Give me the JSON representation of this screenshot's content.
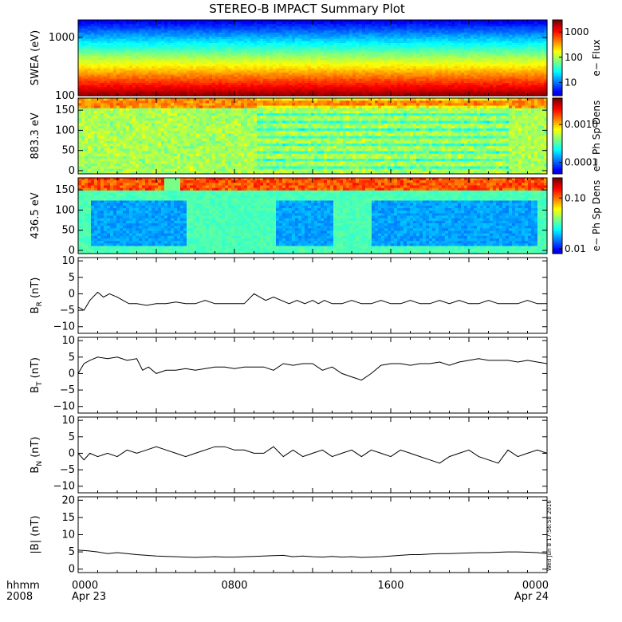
{
  "title": "STEREO-B IMPACT Summary Plot",
  "stamp": "Wed Jun  8 17:56:58 2016",
  "time_axis": {
    "row1_label": "hhmm",
    "row2_label": "2008",
    "range_hours": [
      0,
      24
    ],
    "ticks": [
      {
        "hour": 0,
        "label": "0000",
        "sub": "Apr 23"
      },
      {
        "hour": 8,
        "label": "0800",
        "sub": ""
      },
      {
        "hour": 16,
        "label": "1600",
        "sub": ""
      },
      {
        "hour": 24,
        "label": "0000",
        "sub": "Apr 24"
      }
    ]
  },
  "chart_data": [
    {
      "type": "heatmap",
      "ylabel": "SWEA (eV)",
      "yscale": "log",
      "ylim": [
        100,
        2000
      ],
      "yticks": [
        {
          "v": 100,
          "label": "100"
        },
        {
          "v": 1000,
          "label": "1000"
        }
      ],
      "colorbar": {
        "label": "e− Flux",
        "scale": "log",
        "range": [
          3,
          3000
        ],
        "ticks": [
          {
            "v": 10,
            "label": "10"
          },
          {
            "v": 100,
            "label": "100"
          },
          {
            "v": 1000,
            "label": "1000"
          }
        ]
      }
    },
    {
      "type": "heatmap",
      "ylabel": "883.3 eV",
      "ylim": [
        -8,
        180
      ],
      "yticks": [
        {
          "v": 0,
          "label": "0"
        },
        {
          "v": 50,
          "label": "50"
        },
        {
          "v": 100,
          "label": "100"
        },
        {
          "v": 150,
          "label": "150"
        }
      ],
      "colorbar": {
        "label": "e− Ph Sp Dens",
        "scale": "log",
        "range": [
          5e-05,
          0.005
        ],
        "ticks": [
          {
            "v": 0.0001,
            "label": "0.0001"
          },
          {
            "v": 0.001,
            "label": "0.0010"
          }
        ]
      }
    },
    {
      "type": "heatmap",
      "ylabel": "436.5 eV",
      "ylim": [
        -8,
        180
      ],
      "yticks": [
        {
          "v": 0,
          "label": "0"
        },
        {
          "v": 50,
          "label": "50"
        },
        {
          "v": 100,
          "label": "100"
        },
        {
          "v": 150,
          "label": "150"
        }
      ],
      "colorbar": {
        "label": "e− Ph Sp Dens",
        "scale": "log",
        "range": [
          0.008,
          0.25
        ],
        "ticks": [
          {
            "v": 0.01,
            "label": "0.01"
          },
          {
            "v": 0.1,
            "label": "0.10"
          }
        ]
      }
    },
    {
      "type": "line",
      "ylabel": "B",
      "ysub": "R",
      "yunit": "(nT)",
      "ylim": [
        -12,
        11
      ],
      "yticks": [
        {
          "v": -10,
          "label": "−10"
        },
        {
          "v": -5,
          "label": "−5"
        },
        {
          "v": 0,
          "label": "0"
        },
        {
          "v": 5,
          "label": "5"
        },
        {
          "v": 10,
          "label": "10"
        }
      ],
      "x": [
        0,
        0.3,
        0.6,
        1,
        1.3,
        1.6,
        2,
        2.3,
        2.6,
        3,
        3.5,
        4,
        4.5,
        5,
        5.5,
        6,
        6.5,
        7,
        7.5,
        8,
        8.5,
        9,
        9.3,
        9.6,
        10,
        10.4,
        10.8,
        11.2,
        11.6,
        12,
        12.3,
        12.6,
        13,
        13.5,
        14,
        14.5,
        15,
        15.5,
        16,
        16.5,
        17,
        17.5,
        18,
        18.5,
        19,
        19.5,
        20,
        20.5,
        21,
        21.5,
        22,
        22.5,
        23,
        23.5,
        24
      ],
      "y": [
        -4,
        -5,
        -2,
        0.5,
        -1,
        0,
        -1,
        -2,
        -3,
        -3,
        -3.5,
        -3,
        -3,
        -2.5,
        -3,
        -3,
        -2,
        -3,
        -3,
        -3,
        -3,
        0,
        -1,
        -2,
        -1,
        -2,
        -3,
        -2,
        -3,
        -2,
        -3,
        -2,
        -3,
        -3,
        -2,
        -3,
        -3,
        -2,
        -3,
        -3,
        -2,
        -3,
        -3,
        -2,
        -3,
        -2,
        -3,
        -3,
        -2,
        -3,
        -3,
        -3,
        -2,
        -3,
        -3
      ]
    },
    {
      "type": "line",
      "ylabel": "B",
      "ysub": "T",
      "yunit": "(nT)",
      "ylim": [
        -12,
        11
      ],
      "yticks": [
        {
          "v": -10,
          "label": "−10"
        },
        {
          "v": -5,
          "label": "−5"
        },
        {
          "v": 0,
          "label": "0"
        },
        {
          "v": 5,
          "label": "5"
        },
        {
          "v": 10,
          "label": "10"
        }
      ],
      "x": [
        0,
        0.3,
        0.6,
        1,
        1.5,
        2,
        2.5,
        3,
        3.3,
        3.6,
        4,
        4.5,
        5,
        5.5,
        6,
        6.5,
        7,
        7.5,
        8,
        8.5,
        9,
        9.5,
        10,
        10.5,
        11,
        11.5,
        12,
        12.5,
        13,
        13.5,
        14,
        14.5,
        15,
        15.5,
        16,
        16.5,
        17,
        17.5,
        18,
        18.5,
        19,
        19.5,
        20,
        20.5,
        21,
        21.5,
        22,
        22.5,
        23,
        23.5,
        24
      ],
      "y": [
        0,
        3,
        4,
        5,
        4.5,
        5,
        4,
        4.5,
        1,
        2,
        0,
        1,
        1,
        1.5,
        1,
        1.5,
        2,
        2,
        1.5,
        2,
        2,
        2,
        1,
        3,
        2.5,
        3,
        3,
        1,
        2,
        0,
        -1,
        -2,
        0,
        2.5,
        3,
        3,
        2.5,
        3,
        3,
        3.5,
        2.5,
        3.5,
        4,
        4.5,
        4,
        4,
        4,
        3.5,
        4,
        3.5,
        3
      ]
    },
    {
      "type": "line",
      "ylabel": "B",
      "ysub": "N",
      "yunit": "(nT)",
      "ylim": [
        -12,
        11
      ],
      "yticks": [
        {
          "v": -10,
          "label": "−10"
        },
        {
          "v": -5,
          "label": "−5"
        },
        {
          "v": 0,
          "label": "0"
        },
        {
          "v": 5,
          "label": "5"
        },
        {
          "v": 10,
          "label": "10"
        }
      ],
      "x": [
        0,
        0.3,
        0.6,
        1,
        1.5,
        2,
        2.5,
        3,
        3.5,
        4,
        4.5,
        5,
        5.5,
        6,
        6.5,
        7,
        7.5,
        8,
        8.5,
        9,
        9.5,
        10,
        10.5,
        11,
        11.5,
        12,
        12.5,
        13,
        13.5,
        14,
        14.5,
        15,
        15.5,
        16,
        16.5,
        17,
        17.5,
        18,
        18.5,
        19,
        19.5,
        20,
        20.5,
        21,
        21.5,
        22,
        22.5,
        23,
        23.5,
        24
      ],
      "y": [
        0,
        -2,
        0,
        -1,
        0,
        -1,
        1,
        0,
        1,
        2,
        1,
        0,
        -1,
        0,
        1,
        2,
        2,
        1,
        1,
        0,
        0,
        2,
        -1,
        1,
        -1,
        0,
        1,
        -1,
        0,
        1,
        -1,
        1,
        0,
        -1,
        1,
        0,
        -1,
        -2,
        -3,
        -1,
        0,
        1,
        -1,
        -2,
        -3,
        1,
        -1,
        0,
        1,
        0
      ]
    },
    {
      "type": "line",
      "ylabel": "|B|",
      "yunit": "(nT)",
      "ylim": [
        -1,
        21
      ],
      "yticks": [
        {
          "v": 0,
          "label": "0"
        },
        {
          "v": 5,
          "label": "5"
        },
        {
          "v": 10,
          "label": "10"
        },
        {
          "v": 15,
          "label": "15"
        },
        {
          "v": 20,
          "label": "20"
        }
      ],
      "x": [
        0,
        0.5,
        1,
        1.5,
        2,
        2.5,
        3,
        3.5,
        4,
        4.5,
        5,
        5.5,
        6,
        6.5,
        7,
        7.5,
        8,
        8.5,
        9,
        9.5,
        10,
        10.5,
        11,
        11.5,
        12,
        12.5,
        13,
        13.5,
        14,
        14.5,
        15,
        15.5,
        16,
        16.5,
        17,
        17.5,
        18,
        18.5,
        19,
        19.5,
        20,
        20.5,
        21,
        21.5,
        22,
        22.5,
        23,
        23.5,
        24
      ],
      "y": [
        5.5,
        5.3,
        5,
        4.5,
        4.8,
        4.5,
        4.2,
        4,
        3.8,
        3.7,
        3.6,
        3.5,
        3.4,
        3.5,
        3.6,
        3.5,
        3.5,
        3.6,
        3.7,
        3.8,
        3.9,
        4,
        3.6,
        3.8,
        3.6,
        3.5,
        3.7,
        3.5,
        3.6,
        3.4,
        3.5,
        3.6,
        3.8,
        4,
        4.2,
        4.2,
        4.4,
        4.5,
        4.5,
        4.6,
        4.7,
        4.8,
        4.8,
        4.9,
        5,
        5,
        4.9,
        4.8,
        4.5
      ]
    }
  ]
}
